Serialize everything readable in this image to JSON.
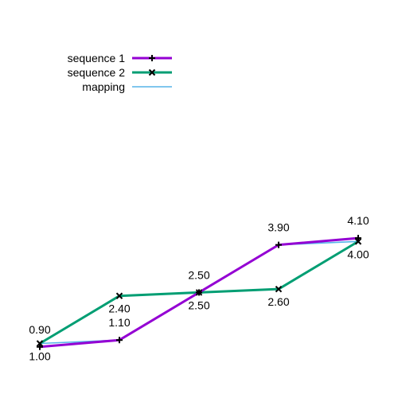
{
  "chart_data": {
    "type": "line",
    "title": "",
    "xlabel": "",
    "ylabel": "",
    "grid": false,
    "axes_visible": false,
    "legend_position": "top-left",
    "series": [
      {
        "name": "sequence 1",
        "color": "#9400d3",
        "marker": "plus",
        "values": [
          0.9,
          1.1,
          2.5,
          3.9,
          4.1
        ]
      },
      {
        "name": "sequence 2",
        "color": "#009e73",
        "marker": "cross",
        "values": [
          1.0,
          2.4,
          2.5,
          2.6,
          4.0
        ]
      }
    ],
    "mapping": {
      "name": "mapping",
      "color": "#56b4e9",
      "pairs": [
        [
          0,
          0
        ],
        [
          1,
          0
        ],
        [
          2,
          1
        ],
        [
          2,
          2
        ],
        [
          2,
          3
        ],
        [
          3,
          4
        ]
      ]
    },
    "labels_seq1": [
      "0.90",
      "1.10",
      "2.50",
      "3.90",
      "4.10"
    ],
    "labels_seq2": [
      "1.00",
      "2.40",
      "2.50",
      "2.60",
      "4.00"
    ]
  }
}
